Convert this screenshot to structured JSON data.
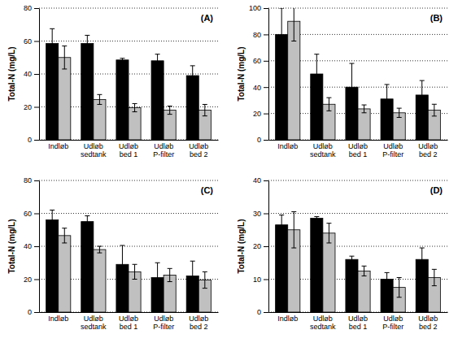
{
  "chart_data": [
    {
      "type": "bar",
      "title": "(A)",
      "y_label": "Total-N (mg/L)",
      "categories": [
        "Indløb",
        "Udløb sedtank",
        "Udløb bed 1",
        "Udløb P-filter",
        "Udløb bed 2"
      ],
      "series": [
        {
          "color": "#000000",
          "values": [
            58.5,
            58.5,
            48.5,
            48,
            39
          ],
          "errors": [
            9,
            5,
            1,
            4,
            6
          ]
        },
        {
          "color": "#c0c0c0",
          "values": [
            50,
            24.5,
            19.5,
            18,
            18
          ],
          "errors": [
            7,
            3,
            2.5,
            2.5,
            3.5
          ]
        }
      ],
      "ylim": [
        0,
        80
      ],
      "yticks": [
        0,
        20,
        40,
        60,
        80
      ],
      "grid": true
    },
    {
      "type": "bar",
      "title": "(B)",
      "y_label": "Total-N (mg/L)",
      "categories": [
        "Indløb",
        "Udløb sedtank",
        "Udløb bed 1",
        "Udløb P-filter",
        "Udløb bed 2"
      ],
      "series": [
        {
          "color": "#000000",
          "values": [
            80,
            50,
            40,
            31,
            34
          ],
          "errors": [
            20,
            15,
            18,
            11,
            11
          ]
        },
        {
          "color": "#c0c0c0",
          "values": [
            90,
            27,
            23.5,
            20.5,
            22.5
          ],
          "errors": [
            15,
            5,
            3,
            3.5,
            4.5
          ]
        }
      ],
      "ylim": [
        0,
        100
      ],
      "yticks": [
        0,
        20,
        40,
        60,
        80,
        100
      ],
      "grid": true
    },
    {
      "type": "bar",
      "title": "(C)",
      "y_label": "Total-N (mg/L)",
      "categories": [
        "Indløb",
        "Udløb sedtank",
        "Udløb bed 1",
        "Udløb P-filter",
        "Udløb bed 2"
      ],
      "series": [
        {
          "color": "#000000",
          "values": [
            56,
            55,
            29,
            21,
            22
          ],
          "errors": [
            6,
            3.5,
            11.5,
            9,
            9
          ]
        },
        {
          "color": "#c0c0c0",
          "values": [
            46.5,
            38,
            24.5,
            22.5,
            19.5
          ],
          "errors": [
            4.5,
            2,
            4.5,
            4,
            5
          ]
        }
      ],
      "ylim": [
        0,
        80
      ],
      "yticks": [
        0,
        20,
        40,
        60,
        80
      ],
      "grid": true
    },
    {
      "type": "bar",
      "title": "(D)",
      "y_label": "Total-N (mg/L)",
      "categories": [
        "Indløb",
        "Udløb sedtank",
        "Udløb bed 1",
        "Udløb P-filter",
        "Udløb bed 2"
      ],
      "series": [
        {
          "color": "#000000",
          "values": [
            26.5,
            28.5,
            16,
            10,
            16
          ],
          "errors": [
            3,
            0.5,
            1,
            2,
            3.5
          ]
        },
        {
          "color": "#c0c0c0",
          "values": [
            25,
            24,
            12.5,
            7.5,
            10.5
          ],
          "errors": [
            5.5,
            3,
            1.5,
            3,
            2.5
          ]
        }
      ],
      "ylim": [
        0,
        40
      ],
      "yticks": [
        0,
        10,
        20,
        30,
        40
      ],
      "grid": true
    }
  ]
}
